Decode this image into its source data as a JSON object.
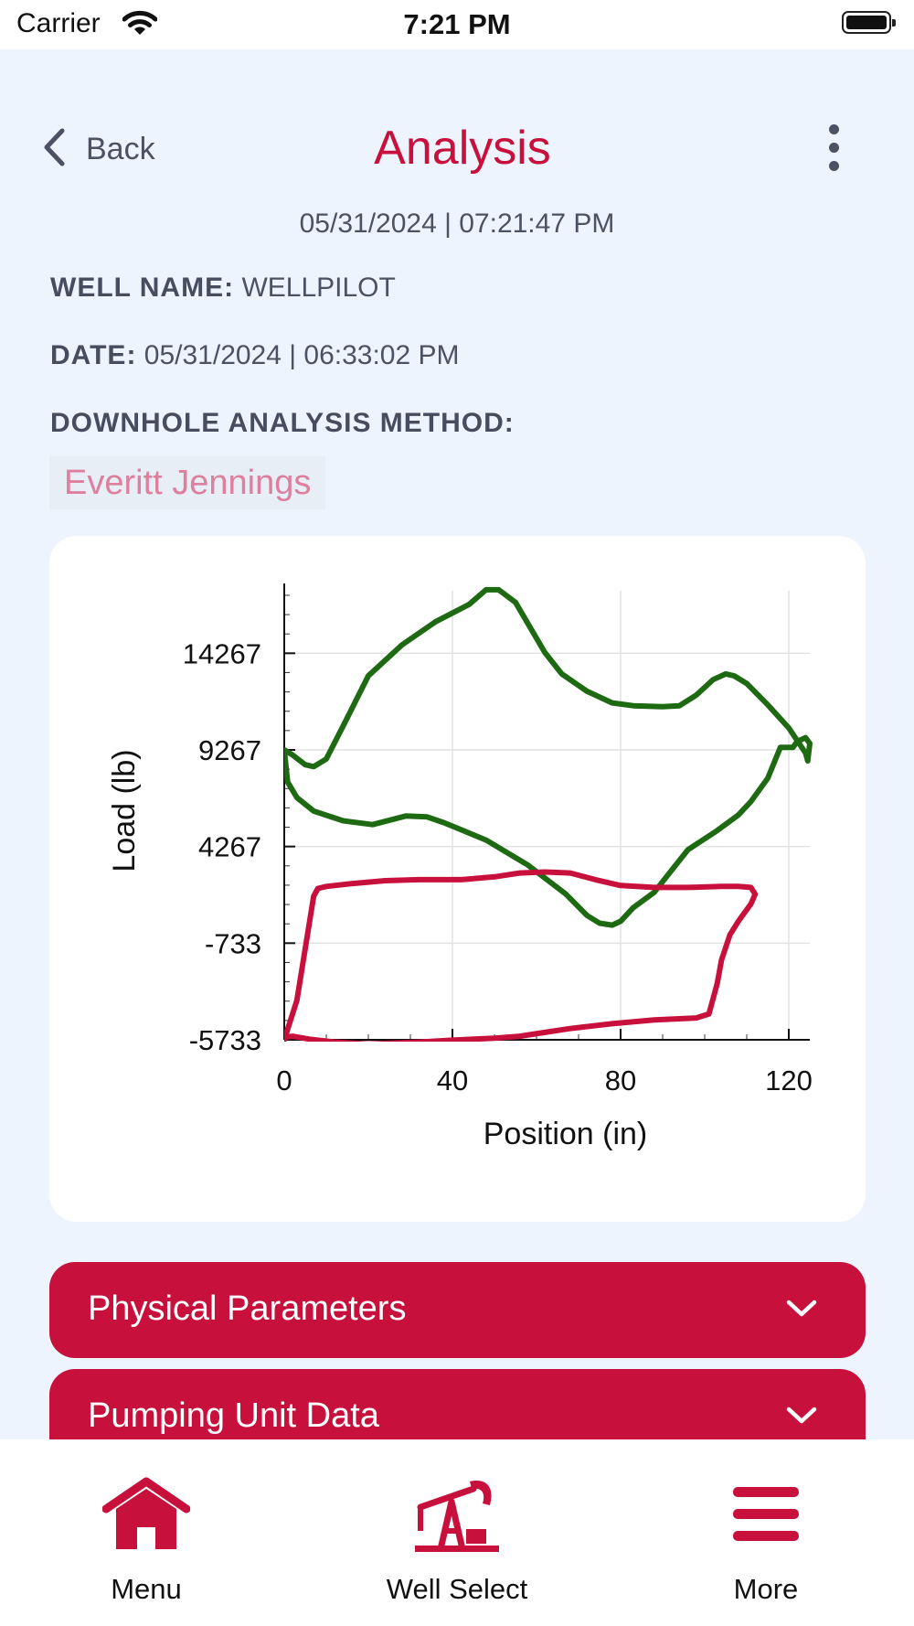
{
  "status_bar": {
    "carrier": "Carrier",
    "time": "7:21 PM"
  },
  "header": {
    "back_label": "Back",
    "title": "Analysis",
    "timestamp": "05/31/2024 | 07:21:47 PM"
  },
  "info": {
    "well_name_label": "WELL NAME:",
    "well_name_value": "WELLPILOT",
    "date_label": "DATE:",
    "date_value": "05/31/2024 | 06:33:02 PM",
    "method_label": "DOWNHOLE ANALYSIS METHOD:",
    "method_value": "Everitt Jennings"
  },
  "chart_data": {
    "type": "line",
    "title": "",
    "xlabel": "Position (in)",
    "ylabel": "Load (lb)",
    "xlim": [
      0,
      125
    ],
    "ylim": [
      -5733,
      17500
    ],
    "x_ticks": [
      0,
      40,
      80,
      120
    ],
    "x_tick_labels": [
      "0",
      "40",
      "80",
      "120"
    ],
    "y_ticks": [
      -5733,
      -733,
      4267,
      9267,
      14267
    ],
    "y_tick_labels": [
      "-5733",
      "-733",
      "4267",
      "9267",
      "14267"
    ],
    "grid": true,
    "legend": "none",
    "series": [
      {
        "color": "#1e6a12",
        "x": [
          0,
          2,
          5,
          7,
          10,
          14,
          20,
          28,
          36,
          44,
          48,
          51,
          55,
          62,
          66,
          72,
          78,
          83,
          90,
          94,
          98,
          102,
          105,
          107,
          110,
          115,
          120,
          124,
          124.5,
          125,
          124,
          122,
          121,
          118,
          115,
          111,
          108,
          103,
          96,
          92,
          88,
          83,
          80,
          78,
          75,
          72,
          67,
          58,
          48,
          38,
          34,
          29,
          21,
          14,
          7,
          3,
          0.8,
          0
        ],
        "y": [
          9267,
          9000,
          8500,
          8400,
          8800,
          10500,
          13100,
          14700,
          15900,
          16800,
          17550,
          17550,
          16900,
          14300,
          13200,
          12300,
          11700,
          11550,
          11500,
          11550,
          12100,
          12900,
          13200,
          13100,
          12700,
          11600,
          10400,
          9100,
          8700,
          9600,
          9900,
          9700,
          9400,
          9400,
          7800,
          6600,
          5900,
          5100,
          4100,
          3000,
          1900,
          1100,
          400,
          200,
          300,
          700,
          1800,
          3300,
          4600,
          5500,
          5800,
          5850,
          5400,
          5600,
          6100,
          6800,
          7600,
          9267
        ]
      },
      {
        "color": "#c8103c",
        "x": [
          0,
          3,
          7,
          8,
          10,
          16,
          24,
          32,
          42,
          50,
          56,
          62,
          68,
          74,
          80,
          88,
          96,
          104,
          108,
          111,
          112,
          111,
          108,
          106,
          104,
          103,
          101,
          98,
          88,
          78,
          68,
          62,
          56,
          50,
          40,
          32,
          20,
          12,
          6,
          2,
          0
        ],
        "y": [
          -5733,
          -3700,
          1700,
          2100,
          2200,
          2350,
          2500,
          2550,
          2550,
          2700,
          2900,
          2950,
          2900,
          2550,
          2250,
          2150,
          2150,
          2200,
          2200,
          2150,
          1800,
          1300,
          400,
          -300,
          -1600,
          -2800,
          -4400,
          -4600,
          -4700,
          -4900,
          -5150,
          -5350,
          -5550,
          -5650,
          -5750,
          -5850,
          -5950,
          -5850,
          -5700,
          -5550,
          -5600
        ]
      }
    ]
  },
  "accordions": [
    {
      "label": "Physical Parameters"
    },
    {
      "label": "Pumping Unit Data"
    }
  ],
  "tabs": [
    {
      "label": "Menu",
      "icon": "home-icon"
    },
    {
      "label": "Well Select",
      "icon": "pumpjack-icon"
    },
    {
      "label": "More",
      "icon": "hamburger-icon"
    }
  ],
  "colors": {
    "accent": "#c8103c",
    "background": "#edf4fd",
    "method_text": "#dd7f9d",
    "series_green": "#1e6a12"
  }
}
